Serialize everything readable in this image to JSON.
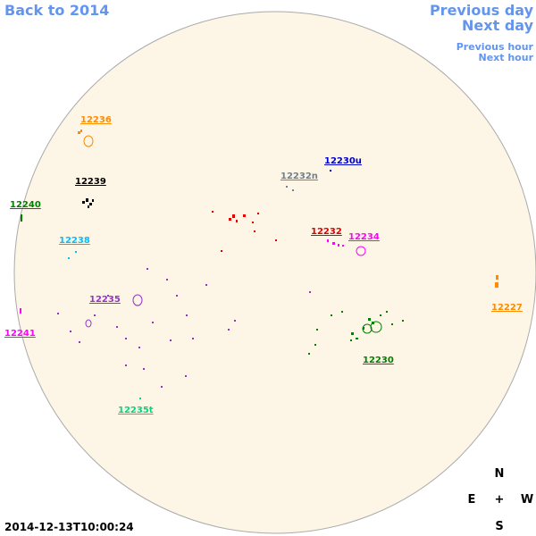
{
  "navigation": {
    "back": "Back to 2014",
    "previous_day": "Previous day",
    "next_day": "Next day",
    "previous_hour": "Previous hour",
    "next_hour": "Next hour"
  },
  "regions": [
    "12236",
    "12239",
    "12240",
    "12238",
    "12235",
    "12241",
    "12235t",
    "12232n",
    "12230u",
    "12232",
    "12234",
    "12227",
    "12230"
  ],
  "timestamp": "2014-12-13T10:00:24",
  "compass": {
    "north": "N",
    "east": "E",
    "center": "+",
    "west": "W",
    "south": "S"
  }
}
